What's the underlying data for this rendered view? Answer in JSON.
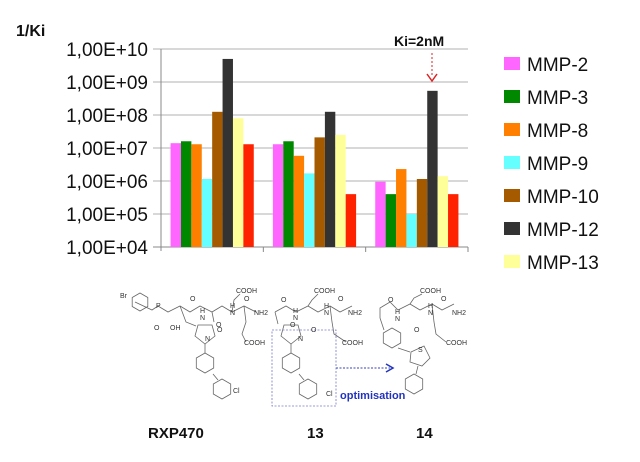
{
  "chart_data": {
    "type": "bar",
    "title": "",
    "ylabel": "1/Ki",
    "xlabel": "",
    "yscale": "log",
    "ylim": [
      10000,
      10000000000
    ],
    "yticks": [
      "1,00E+04",
      "1,00E+05",
      "1,00E+06",
      "1,00E+07",
      "1,00E+08",
      "1,00E+09",
      "1,00E+10"
    ],
    "ytick_values": [
      10000,
      100000,
      1000000,
      10000000,
      100000000,
      1000000000,
      10000000000
    ],
    "grid": true,
    "legend_position": "right",
    "categories": [
      "RXP470",
      "13",
      "14"
    ],
    "series": [
      {
        "name": "MMP-2",
        "color": "#ff66ff",
        "values": [
          14000000,
          13000000,
          950000
        ]
      },
      {
        "name": "MMP-3",
        "color": "#008800",
        "values": [
          16000000,
          16000000,
          400000
        ]
      },
      {
        "name": "MMP-8",
        "color": "#ff7f00",
        "values": [
          13000000,
          5800000,
          2300000
        ]
      },
      {
        "name": "MMP-9",
        "color": "#66ffff",
        "values": [
          1150000,
          1700000,
          100000
        ]
      },
      {
        "name": "MMP-10",
        "color": "#a65a00",
        "values": [
          125000000,
          21000000,
          1150000
        ]
      },
      {
        "name": "MMP-12",
        "color": "#333333",
        "values": [
          5000000000,
          125000000,
          540000000
        ]
      },
      {
        "name": "MMP-13",
        "color": "#ffff99",
        "values": [
          80000000,
          25000000,
          1400000
        ]
      },
      {
        "name": null,
        "color": "#ff2200",
        "values": [
          13000000,
          400000,
          400000
        ]
      }
    ],
    "annotations": [
      {
        "text": "Ki=2nM",
        "target_category": "14",
        "target_series": "MMP-12",
        "color": "#dd2222"
      }
    ]
  },
  "structures": {
    "rxp470": {
      "br": "Br",
      "p": "P",
      "o1": "O",
      "oh": "OH",
      "o2": "O",
      "cooh1": "COOH",
      "h1": "H",
      "n1": "N",
      "o3": "O",
      "h2": "H",
      "n2": "N",
      "o4": "O",
      "nh2": "NH2",
      "cooh2": "COOH",
      "o5": "O",
      "n3": "N",
      "cl": "Cl"
    },
    "c13": {
      "cooh1": "COOH",
      "o1": "O",
      "h1": "H",
      "n1": "N",
      "o2": "O",
      "h2": "H",
      "n2": "N",
      "o3": "O",
      "nh2": "NH2",
      "cooh2": "COOH",
      "o4": "O",
      "n3": "N",
      "cl": "Cl"
    },
    "c14": {
      "cooh1": "COOH",
      "o1": "O",
      "h1": "H",
      "n1": "N",
      "o2": "O",
      "h2": "H",
      "n2": "N",
      "o3": "O",
      "nh2": "NH2",
      "cooh2": "COOH",
      "s": "S"
    },
    "optimisation_label": "optimisation",
    "compound_labels": [
      "RXP470",
      "13",
      "14"
    ]
  }
}
